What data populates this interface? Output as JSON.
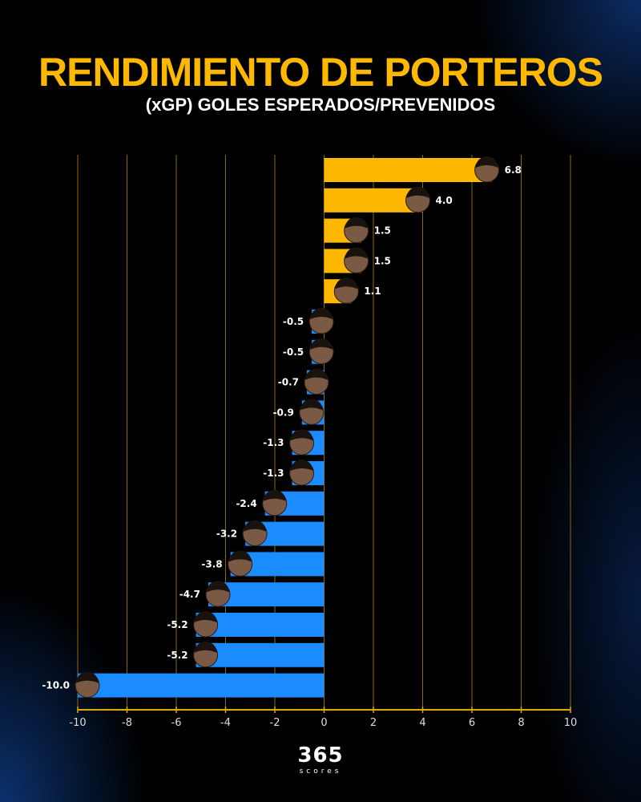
{
  "header": {
    "title": "RENDIMIENTO DE PORTEROS",
    "subtitle": "(xGP) GOLES ESPERADOS/PREVENIDOS"
  },
  "logo": {
    "number": "365",
    "text": "scores"
  },
  "colors": {
    "positive": "#FFB800",
    "negative": "#1A8CFF",
    "grid": "#8A6A10",
    "axis": "#E0A800",
    "title": "#FFB800"
  },
  "chart_data": {
    "type": "bar",
    "orientation": "horizontal",
    "title": "RENDIMIENTO DE PORTEROS",
    "subtitle": "(xGP) GOLES ESPERADOS/PREVENIDOS",
    "xlim": [
      -10,
      10
    ],
    "xticks": [
      -10,
      -8,
      -6,
      -4,
      -2,
      0,
      2,
      4,
      6,
      8,
      10
    ],
    "grid": true,
    "values": [
      6.8,
      4.0,
      1.5,
      1.5,
      1.1,
      -0.5,
      -0.5,
      -0.7,
      -0.9,
      -1.3,
      -1.3,
      -2.4,
      -3.2,
      -3.8,
      -4.7,
      -5.2,
      -5.2,
      -10.0
    ],
    "labels": [
      "6.8",
      "4.0",
      "1.5",
      "1.5",
      "1.1",
      "-0.5",
      "-0.5",
      "-0.7",
      "-0.9",
      "-1.3",
      "-1.3",
      "-2.4",
      "-3.2",
      "-3.8",
      "-4.7",
      "-5.2",
      "-5.2",
      "-10.0"
    ],
    "bar_markers": "player-face-photo"
  }
}
